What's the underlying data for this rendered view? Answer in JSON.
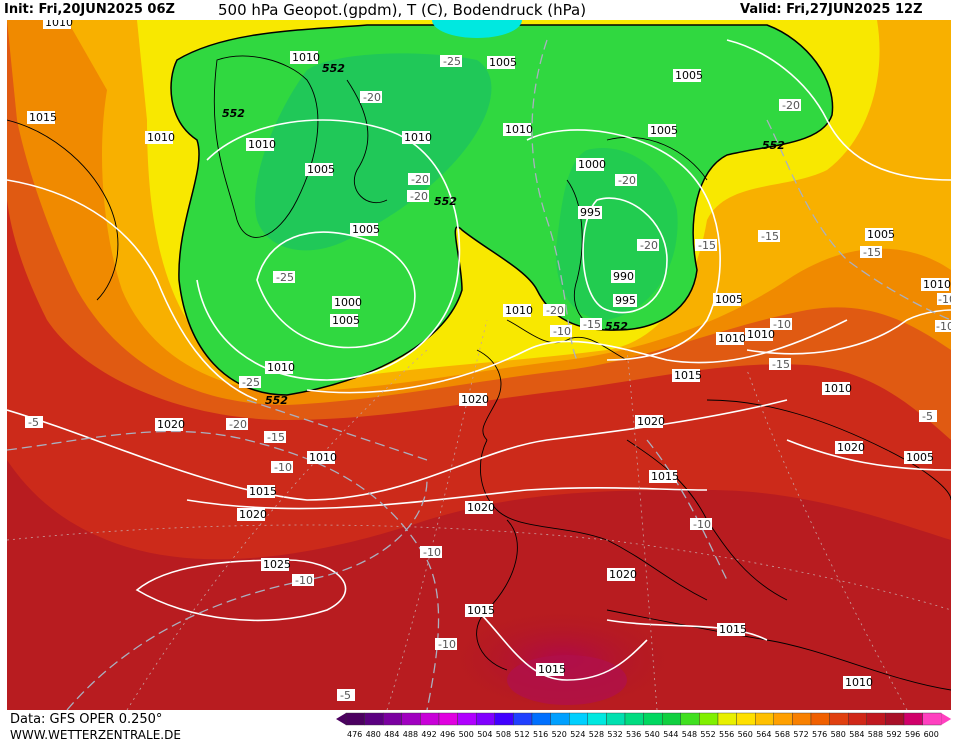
{
  "header": {
    "init": "Init: Fri,20JUN2025 06Z",
    "title": "500 hPa Geopot.(gpdm), T (C), Bodendruck (hPa)",
    "valid": "Valid: Fri,27JUN2025 12Z"
  },
  "footer": {
    "data": "Data: GFS OPER 0.250°",
    "site": "WWW.WETTERZENTRALE.DE"
  },
  "scale": {
    "labels": [
      "476",
      "480",
      "484",
      "488",
      "492",
      "496",
      "500",
      "504",
      "508",
      "512",
      "516",
      "520",
      "524",
      "528",
      "532",
      "536",
      "540",
      "544",
      "548",
      "552",
      "556",
      "560",
      "564",
      "568",
      "572",
      "576",
      "580",
      "584",
      "588",
      "592",
      "596",
      "600"
    ],
    "colors": [
      "#4b0060",
      "#5a0080",
      "#7a00a0",
      "#a000c0",
      "#c800d8",
      "#e000e0",
      "#b000ff",
      "#8000ff",
      "#4000ff",
      "#2040ff",
      "#0070ff",
      "#00a0ff",
      "#00d0ff",
      "#00e8e0",
      "#00e0b0",
      "#00dc80",
      "#00d860",
      "#10d040",
      "#40e020",
      "#80f000",
      "#e8f000",
      "#ffe000",
      "#ffc000",
      "#ffa000",
      "#f88000",
      "#f06000",
      "#e04010",
      "#d02818",
      "#c01820",
      "#a81028",
      "#d0006a",
      "#ff40c0"
    ]
  },
  "map": {
    "colors": {
      "green": "#30d840",
      "green_dark": "#20c850",
      "yellow": "#f8f000",
      "orange": "#f09000",
      "orange_red": "#e06010",
      "red": "#cc2a1a",
      "dark_red": "#b01820",
      "magenta": "#b80848"
    },
    "geo_labels": [
      "552",
      "552",
      "552",
      "552",
      "552"
    ],
    "pressure_labels": [
      "1010",
      "1010",
      "1010",
      "1010",
      "1015",
      "1005",
      "1005",
      "1005",
      "1010",
      "1005",
      "1000",
      "995",
      "990",
      "995",
      "1000",
      "1005",
      "1010",
      "1005",
      "1005",
      "1010",
      "1010",
      "1010",
      "1010",
      "1010",
      "1015",
      "1020",
      "1020",
      "1020",
      "1015",
      "1015",
      "1020",
      "1010",
      "1005",
      "1005",
      "1020",
      "1025",
      "1015",
      "1020",
      "1015",
      "1015",
      "1010",
      "1020",
      "1010"
    ],
    "temp_labels": [
      "-25",
      "-20",
      "-20",
      "-20",
      "-20",
      "-15",
      "-15",
      "-25",
      "-20",
      "-25",
      "-20",
      "-15",
      "-10",
      "-10",
      "-5",
      "-15",
      "-10",
      "-15",
      "-20",
      "-20",
      "-15",
      "-10",
      "-10",
      "-10",
      "-10",
      "-10",
      "-5",
      "-5",
      "-10"
    ]
  }
}
